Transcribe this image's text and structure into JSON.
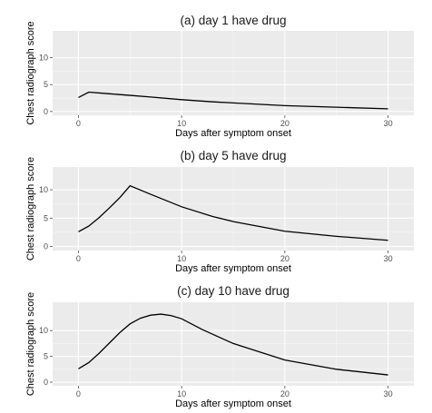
{
  "chart_data": [
    {
      "type": "line",
      "title": "(a) day 1 have drug",
      "xlabel": "Days after symptom onset",
      "ylabel": "Chest radiograph score",
      "xlim": [
        -2.5,
        32.5
      ],
      "ylim": [
        -0.7,
        15.0
      ],
      "xticks": [
        0,
        10,
        20,
        30
      ],
      "yticks": [
        0,
        5,
        10
      ],
      "grid": true,
      "series": [
        {
          "x": [
            0,
            1,
            3,
            5,
            7,
            10,
            13,
            15,
            20,
            25,
            30
          ],
          "values": [
            2.6,
            3.6,
            3.3,
            3.0,
            2.7,
            2.2,
            1.8,
            1.6,
            1.1,
            0.8,
            0.5
          ]
        }
      ]
    },
    {
      "type": "line",
      "title": "(b) day 5 have drug",
      "xlabel": "Days after symptom onset",
      "ylabel": "Chest radiograph score",
      "xlim": [
        -2.5,
        32.5
      ],
      "ylim": [
        -0.7,
        14.0
      ],
      "xticks": [
        0,
        10,
        20,
        30
      ],
      "yticks": [
        0,
        5,
        10
      ],
      "grid": true,
      "series": [
        {
          "x": [
            0,
            1,
            2,
            3,
            4,
            5,
            7,
            10,
            13,
            15,
            20,
            25,
            30
          ],
          "values": [
            2.6,
            3.6,
            5.1,
            6.8,
            8.6,
            10.7,
            9.2,
            7.0,
            5.3,
            4.4,
            2.7,
            1.8,
            1.1
          ]
        }
      ]
    },
    {
      "type": "line",
      "title": "(c) day 10 have drug",
      "xlabel": "Days after symptom onset",
      "ylabel": "Chest radiograph score",
      "xlim": [
        -2.5,
        32.5
      ],
      "ylim": [
        -0.7,
        15.5
      ],
      "xticks": [
        0,
        10,
        20,
        30
      ],
      "yticks": [
        0,
        5,
        10
      ],
      "grid": true,
      "series": [
        {
          "x": [
            0,
            1,
            2,
            3,
            4,
            5,
            6,
            7,
            8,
            9,
            10,
            12,
            15,
            20,
            25,
            30
          ],
          "values": [
            2.6,
            3.8,
            5.6,
            7.6,
            9.6,
            11.3,
            12.4,
            13.0,
            13.2,
            12.9,
            12.3,
            10.2,
            7.5,
            4.3,
            2.5,
            1.4
          ]
        }
      ]
    }
  ]
}
